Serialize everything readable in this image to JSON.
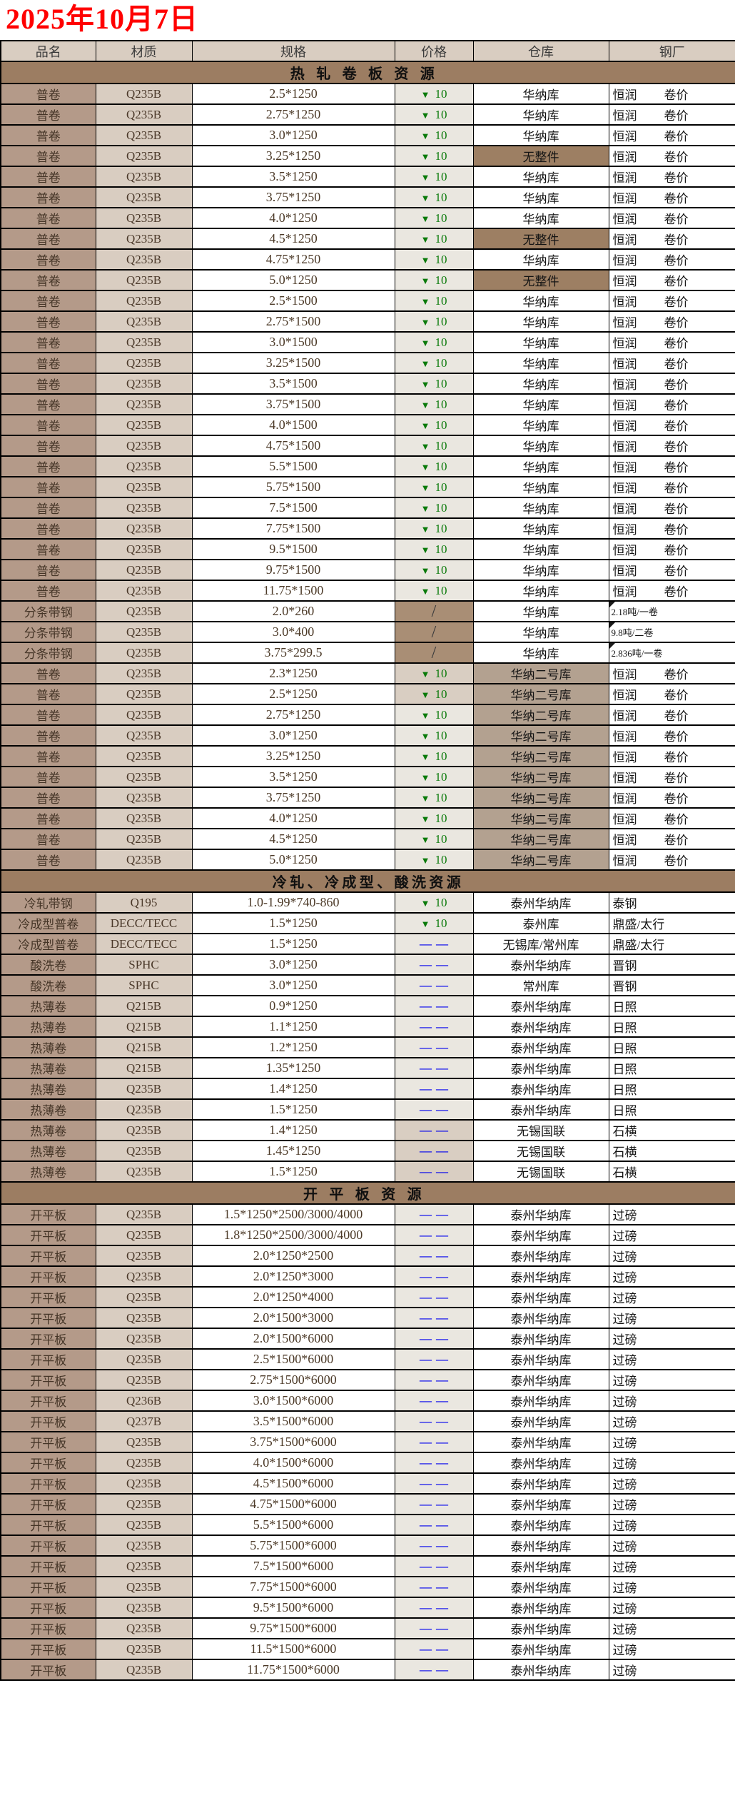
{
  "title": "2025年10月7日",
  "columns": [
    "品名",
    "材质",
    "规格",
    "价格",
    "仓库",
    "钢厂"
  ],
  "price_symbols": {
    "down": "▼",
    "dash": "——",
    "slash": "/"
  },
  "colors": {
    "title_red": "#FF0000",
    "price_down_green": "#0A7A0A",
    "price_dash_blue": "#0000EE",
    "section_header_bg": "#9C7D62",
    "product_col_bg": "#B49A89",
    "material_col_bg": "#D9CDC1",
    "no_whole_piece_bg": "#9D7F63",
    "warehouse2_bg": "#B3A190"
  },
  "sections": [
    {
      "title": "热轧卷板资源",
      "spacing": "wide",
      "rows": [
        {
          "n": "普卷",
          "m": "Q235B",
          "s": "2.5*1250",
          "p": {
            "t": "down",
            "v": "10"
          },
          "w": "华纳库",
          "g": "恒润",
          "g2": "卷价"
        },
        {
          "n": "普卷",
          "m": "Q235B",
          "s": "2.75*1250",
          "p": {
            "t": "down",
            "v": "10"
          },
          "w": "华纳库",
          "g": "恒润",
          "g2": "卷价"
        },
        {
          "n": "普卷",
          "m": "Q235B",
          "s": "3.0*1250",
          "p": {
            "t": "down",
            "v": "10"
          },
          "w": "华纳库",
          "g": "恒润",
          "g2": "卷价"
        },
        {
          "n": "普卷",
          "m": "Q235B",
          "s": "3.25*1250",
          "p": {
            "t": "down",
            "v": "10"
          },
          "w": "无整件",
          "wb": "brown",
          "g": "恒润",
          "g2": "卷价"
        },
        {
          "n": "普卷",
          "m": "Q235B",
          "s": "3.5*1250",
          "p": {
            "t": "down",
            "v": "10"
          },
          "w": "华纳库",
          "g": "恒润",
          "g2": "卷价"
        },
        {
          "n": "普卷",
          "m": "Q235B",
          "s": "3.75*1250",
          "p": {
            "t": "down",
            "v": "10"
          },
          "w": "华纳库",
          "g": "恒润",
          "g2": "卷价"
        },
        {
          "n": "普卷",
          "m": "Q235B",
          "s": "4.0*1250",
          "p": {
            "t": "down",
            "v": "10"
          },
          "w": "华纳库",
          "g": "恒润",
          "g2": "卷价"
        },
        {
          "n": "普卷",
          "m": "Q235B",
          "s": "4.5*1250",
          "p": {
            "t": "down",
            "v": "10"
          },
          "w": "无整件",
          "wb": "brown",
          "g": "恒润",
          "g2": "卷价"
        },
        {
          "n": "普卷",
          "m": "Q235B",
          "s": "4.75*1250",
          "p": {
            "t": "down",
            "v": "10"
          },
          "w": "华纳库",
          "g": "恒润",
          "g2": "卷价"
        },
        {
          "n": "普卷",
          "m": "Q235B",
          "s": "5.0*1250",
          "p": {
            "t": "down",
            "v": "10"
          },
          "w": "无整件",
          "wb": "brown",
          "g": "恒润",
          "g2": "卷价"
        },
        {
          "n": "普卷",
          "m": "Q235B",
          "s": "2.5*1500",
          "p": {
            "t": "down",
            "v": "10"
          },
          "w": "华纳库",
          "g": "恒润",
          "g2": "卷价"
        },
        {
          "n": "普卷",
          "m": "Q235B",
          "s": "2.75*1500",
          "p": {
            "t": "down",
            "v": "10"
          },
          "w": "华纳库",
          "g": "恒润",
          "g2": "卷价"
        },
        {
          "n": "普卷",
          "m": "Q235B",
          "s": "3.0*1500",
          "p": {
            "t": "down",
            "v": "10"
          },
          "w": "华纳库",
          "g": "恒润",
          "g2": "卷价"
        },
        {
          "n": "普卷",
          "m": "Q235B",
          "s": "3.25*1500",
          "p": {
            "t": "down",
            "v": "10"
          },
          "w": "华纳库",
          "g": "恒润",
          "g2": "卷价"
        },
        {
          "n": "普卷",
          "m": "Q235B",
          "s": "3.5*1500",
          "p": {
            "t": "down",
            "v": "10"
          },
          "w": "华纳库",
          "g": "恒润",
          "g2": "卷价"
        },
        {
          "n": "普卷",
          "m": "Q235B",
          "s": "3.75*1500",
          "p": {
            "t": "down",
            "v": "10"
          },
          "w": "华纳库",
          "g": "恒润",
          "g2": "卷价"
        },
        {
          "n": "普卷",
          "m": "Q235B",
          "s": "4.0*1500",
          "p": {
            "t": "down",
            "v": "10"
          },
          "w": "华纳库",
          "g": "恒润",
          "g2": "卷价"
        },
        {
          "n": "普卷",
          "m": "Q235B",
          "s": "4.75*1500",
          "p": {
            "t": "down",
            "v": "10"
          },
          "w": "华纳库",
          "g": "恒润",
          "g2": "卷价"
        },
        {
          "n": "普卷",
          "m": "Q235B",
          "s": "5.5*1500",
          "p": {
            "t": "down",
            "v": "10"
          },
          "w": "华纳库",
          "g": "恒润",
          "g2": "卷价"
        },
        {
          "n": "普卷",
          "m": "Q235B",
          "s": "5.75*1500",
          "p": {
            "t": "down",
            "v": "10"
          },
          "w": "华纳库",
          "g": "恒润",
          "g2": "卷价"
        },
        {
          "n": "普卷",
          "m": "Q235B",
          "s": "7.5*1500",
          "p": {
            "t": "down",
            "v": "10"
          },
          "w": "华纳库",
          "g": "恒润",
          "g2": "卷价"
        },
        {
          "n": "普卷",
          "m": "Q235B",
          "s": "7.75*1500",
          "p": {
            "t": "down",
            "v": "10"
          },
          "w": "华纳库",
          "g": "恒润",
          "g2": "卷价"
        },
        {
          "n": "普卷",
          "m": "Q235B",
          "s": "9.5*1500",
          "p": {
            "t": "down",
            "v": "10"
          },
          "w": "华纳库",
          "g": "恒润",
          "g2": "卷价"
        },
        {
          "n": "普卷",
          "m": "Q235B",
          "s": "9.75*1500",
          "p": {
            "t": "down",
            "v": "10"
          },
          "w": "华纳库",
          "g": "恒润",
          "g2": "卷价"
        },
        {
          "n": "普卷",
          "m": "Q235B",
          "s": "11.75*1500",
          "p": {
            "t": "down",
            "v": "10"
          },
          "w": "华纳库",
          "g": "恒润",
          "g2": "卷价"
        },
        {
          "n": "分条带钢",
          "m": "Q235B",
          "s": "2.0*260",
          "p": {
            "t": "slash"
          },
          "pb": "brown",
          "w": "华纳库",
          "g": "2.18吨/一卷",
          "gs": true
        },
        {
          "n": "分条带钢",
          "m": "Q235B",
          "s": "3.0*400",
          "p": {
            "t": "slash"
          },
          "pb": "brown",
          "w": "华纳库",
          "g": "9.8吨/二卷",
          "gs": true
        },
        {
          "n": "分条带钢",
          "m": "Q235B",
          "s": "3.75*299.5",
          "p": {
            "t": "slash"
          },
          "pb": "brown",
          "w": "华纳库",
          "g": "2.836吨/一卷",
          "gs": true
        },
        {
          "n": "普卷",
          "m": "Q235B",
          "s": "2.3*1250",
          "p": {
            "t": "down",
            "v": "10"
          },
          "pb": "tan",
          "w": "华纳二号库",
          "wb": "tan",
          "g": "恒润",
          "g2": "卷价"
        },
        {
          "n": "普卷",
          "m": "Q235B",
          "s": "2.5*1250",
          "p": {
            "t": "down",
            "v": "10"
          },
          "pb": "tan",
          "w": "华纳二号库",
          "wb": "tan",
          "g": "恒润",
          "g2": "卷价"
        },
        {
          "n": "普卷",
          "m": "Q235B",
          "s": "2.75*1250",
          "p": {
            "t": "down",
            "v": "10"
          },
          "w": "华纳二号库",
          "wb": "tan",
          "g": "恒润",
          "g2": "卷价"
        },
        {
          "n": "普卷",
          "m": "Q235B",
          "s": "3.0*1250",
          "p": {
            "t": "down",
            "v": "10"
          },
          "w": "华纳二号库",
          "wb": "tan",
          "g": "恒润",
          "g2": "卷价"
        },
        {
          "n": "普卷",
          "m": "Q235B",
          "s": "3.25*1250",
          "p": {
            "t": "down",
            "v": "10"
          },
          "w": "华纳二号库",
          "wb": "tan",
          "g": "恒润",
          "g2": "卷价"
        },
        {
          "n": "普卷",
          "m": "Q235B",
          "s": "3.5*1250",
          "p": {
            "t": "down",
            "v": "10"
          },
          "w": "华纳二号库",
          "wb": "tan",
          "g": "恒润",
          "g2": "卷价"
        },
        {
          "n": "普卷",
          "m": "Q235B",
          "s": "3.75*1250",
          "p": {
            "t": "down",
            "v": "10"
          },
          "w": "华纳二号库",
          "wb": "tan",
          "g": "恒润",
          "g2": "卷价"
        },
        {
          "n": "普卷",
          "m": "Q235B",
          "s": "4.0*1250",
          "p": {
            "t": "down",
            "v": "10"
          },
          "w": "华纳二号库",
          "wb": "tan",
          "g": "恒润",
          "g2": "卷价"
        },
        {
          "n": "普卷",
          "m": "Q235B",
          "s": "4.5*1250",
          "p": {
            "t": "down",
            "v": "10"
          },
          "w": "华纳二号库",
          "wb": "tan",
          "g": "恒润",
          "g2": "卷价"
        },
        {
          "n": "普卷",
          "m": "Q235B",
          "s": "5.0*1250",
          "p": {
            "t": "down",
            "v": "10"
          },
          "w": "华纳二号库",
          "wb": "tan",
          "g": "恒润",
          "g2": "卷价"
        }
      ]
    },
    {
      "title": "冷轧、冷成型、酸洗资源",
      "spacing": "mid",
      "rows": [
        {
          "n": "冷轧带钢",
          "m": "Q195",
          "s": "1.0-1.99*740-860",
          "p": {
            "t": "down",
            "v": "10"
          },
          "w": "泰州华纳库",
          "g": "泰钢"
        },
        {
          "n": "冷成型普卷",
          "m": "DECC/TECC",
          "s": "1.5*1250",
          "p": {
            "t": "down",
            "v": "10"
          },
          "w": "泰州库",
          "g": "鼎盛/太行"
        },
        {
          "n": "冷成型普卷",
          "m": "DECC/TECC",
          "s": "1.5*1250",
          "p": {
            "t": "dash"
          },
          "w": "无锡库/常州库",
          "g": "鼎盛/太行"
        },
        {
          "n": "酸洗卷",
          "m": "SPHC",
          "s": "3.0*1250",
          "p": {
            "t": "dash"
          },
          "w": "泰州华纳库",
          "g": "晋钢"
        },
        {
          "n": "酸洗卷",
          "m": "SPHC",
          "s": "3.0*1250",
          "p": {
            "t": "dash"
          },
          "w": "常州库",
          "g": "晋钢"
        },
        {
          "n": "热薄卷",
          "m": "Q215B",
          "s": "0.9*1250",
          "p": {
            "t": "dash"
          },
          "w": "泰州华纳库",
          "g": "日照"
        },
        {
          "n": "热薄卷",
          "m": "Q215B",
          "s": "1.1*1250",
          "p": {
            "t": "dash"
          },
          "w": "泰州华纳库",
          "g": "日照"
        },
        {
          "n": "热薄卷",
          "m": "Q215B",
          "s": "1.2*1250",
          "p": {
            "t": "dash"
          },
          "w": "泰州华纳库",
          "g": "日照"
        },
        {
          "n": "热薄卷",
          "m": "Q215B",
          "s": "1.35*1250",
          "p": {
            "t": "dash"
          },
          "w": "泰州华纳库",
          "g": "日照"
        },
        {
          "n": "热薄卷",
          "m": "Q235B",
          "s": "1.4*1250",
          "p": {
            "t": "dash"
          },
          "w": "泰州华纳库",
          "g": "日照"
        },
        {
          "n": "热薄卷",
          "m": "Q235B",
          "s": "1.5*1250",
          "p": {
            "t": "dash"
          },
          "w": "泰州华纳库",
          "g": "日照"
        },
        {
          "n": "热薄卷",
          "m": "Q235B",
          "s": "1.4*1250",
          "p": {
            "t": "dash"
          },
          "pb": "tan",
          "w": "无锡国联",
          "g": "石横"
        },
        {
          "n": "热薄卷",
          "m": "Q235B",
          "s": "1.45*1250",
          "p": {
            "t": "dash"
          },
          "pb": "tan",
          "w": "无锡国联",
          "g": "石横"
        },
        {
          "n": "热薄卷",
          "m": "Q235B",
          "s": "1.5*1250",
          "p": {
            "t": "dash"
          },
          "pb": "tan",
          "w": "无锡国联",
          "g": "石横"
        }
      ]
    },
    {
      "title": "开平板资源",
      "spacing": "wide",
      "rows": [
        {
          "n": "开平板",
          "m": "Q235B",
          "s": "1.5*1250*2500/3000/4000",
          "p": {
            "t": "dash"
          },
          "w": "泰州华纳库",
          "g": "过磅"
        },
        {
          "n": "开平板",
          "m": "Q235B",
          "s": "1.8*1250*2500/3000/4000",
          "p": {
            "t": "dash"
          },
          "w": "泰州华纳库",
          "g": "过磅"
        },
        {
          "n": "开平板",
          "m": "Q235B",
          "s": "2.0*1250*2500",
          "p": {
            "t": "dash"
          },
          "w": "泰州华纳库",
          "g": "过磅"
        },
        {
          "n": "开平板",
          "m": "Q235B",
          "s": "2.0*1250*3000",
          "p": {
            "t": "dash"
          },
          "w": "泰州华纳库",
          "g": "过磅"
        },
        {
          "n": "开平板",
          "m": "Q235B",
          "s": "2.0*1250*4000",
          "p": {
            "t": "dash"
          },
          "w": "泰州华纳库",
          "g": "过磅"
        },
        {
          "n": "开平板",
          "m": "Q235B",
          "s": "2.0*1500*3000",
          "p": {
            "t": "dash"
          },
          "w": "泰州华纳库",
          "g": "过磅"
        },
        {
          "n": "开平板",
          "m": "Q235B",
          "s": "2.0*1500*6000",
          "p": {
            "t": "dash"
          },
          "w": "泰州华纳库",
          "g": "过磅"
        },
        {
          "n": "开平板",
          "m": "Q235B",
          "s": "2.5*1500*6000",
          "p": {
            "t": "dash"
          },
          "w": "泰州华纳库",
          "g": "过磅"
        },
        {
          "n": "开平板",
          "m": "Q235B",
          "s": "2.75*1500*6000",
          "p": {
            "t": "dash"
          },
          "w": "泰州华纳库",
          "g": "过磅"
        },
        {
          "n": "开平板",
          "m": "Q236B",
          "s": "3.0*1500*6000",
          "p": {
            "t": "dash"
          },
          "w": "泰州华纳库",
          "g": "过磅"
        },
        {
          "n": "开平板",
          "m": "Q237B",
          "s": "3.5*1500*6000",
          "p": {
            "t": "dash"
          },
          "w": "泰州华纳库",
          "g": "过磅"
        },
        {
          "n": "开平板",
          "m": "Q235B",
          "s": "3.75*1500*6000",
          "p": {
            "t": "dash"
          },
          "w": "泰州华纳库",
          "g": "过磅"
        },
        {
          "n": "开平板",
          "m": "Q235B",
          "s": "4.0*1500*6000",
          "p": {
            "t": "dash"
          },
          "w": "泰州华纳库",
          "g": "过磅"
        },
        {
          "n": "开平板",
          "m": "Q235B",
          "s": "4.5*1500*6000",
          "p": {
            "t": "dash"
          },
          "w": "泰州华纳库",
          "g": "过磅"
        },
        {
          "n": "开平板",
          "m": "Q235B",
          "s": "4.75*1500*6000",
          "p": {
            "t": "dash"
          },
          "w": "泰州华纳库",
          "g": "过磅"
        },
        {
          "n": "开平板",
          "m": "Q235B",
          "s": "5.5*1500*6000",
          "p": {
            "t": "dash"
          },
          "w": "泰州华纳库",
          "g": "过磅"
        },
        {
          "n": "开平板",
          "m": "Q235B",
          "s": "5.75*1500*6000",
          "p": {
            "t": "dash"
          },
          "w": "泰州华纳库",
          "g": "过磅"
        },
        {
          "n": "开平板",
          "m": "Q235B",
          "s": "7.5*1500*6000",
          "p": {
            "t": "dash"
          },
          "w": "泰州华纳库",
          "g": "过磅"
        },
        {
          "n": "开平板",
          "m": "Q235B",
          "s": "7.75*1500*6000",
          "p": {
            "t": "dash"
          },
          "w": "泰州华纳库",
          "g": "过磅"
        },
        {
          "n": "开平板",
          "m": "Q235B",
          "s": "9.5*1500*6000",
          "p": {
            "t": "dash"
          },
          "w": "泰州华纳库",
          "g": "过磅"
        },
        {
          "n": "开平板",
          "m": "Q235B",
          "s": "9.75*1500*6000",
          "p": {
            "t": "dash"
          },
          "w": "泰州华纳库",
          "g": "过磅"
        },
        {
          "n": "开平板",
          "m": "Q235B",
          "s": "11.5*1500*6000",
          "p": {
            "t": "dash"
          },
          "w": "泰州华纳库",
          "g": "过磅"
        },
        {
          "n": "开平板",
          "m": "Q235B",
          "s": "11.75*1500*6000",
          "p": {
            "t": "dash"
          },
          "w": "泰州华纳库",
          "g": "过磅"
        }
      ]
    }
  ]
}
